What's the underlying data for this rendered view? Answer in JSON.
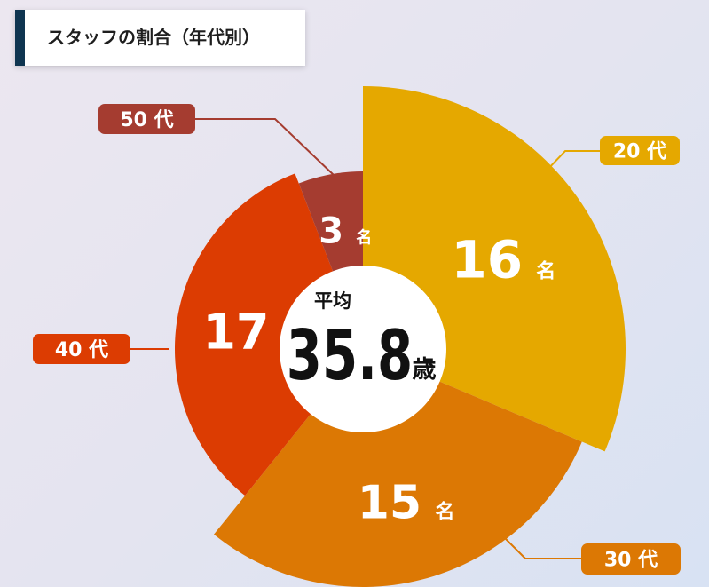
{
  "title": "スタッフの割合（年代別）",
  "center": {
    "label": "平均",
    "value": "35.8",
    "unit": "歳"
  },
  "chart_data": {
    "type": "pie",
    "title": "スタッフの割合（年代別）",
    "unit": "名",
    "categories": [
      "20 代",
      "30 代",
      "40 代",
      "50 代"
    ],
    "values": [
      16,
      15,
      17,
      3
    ],
    "colors": [
      "#e5a800",
      "#dc7804",
      "#dc3c02",
      "#a53c30"
    ],
    "average_age": 35.8
  }
}
